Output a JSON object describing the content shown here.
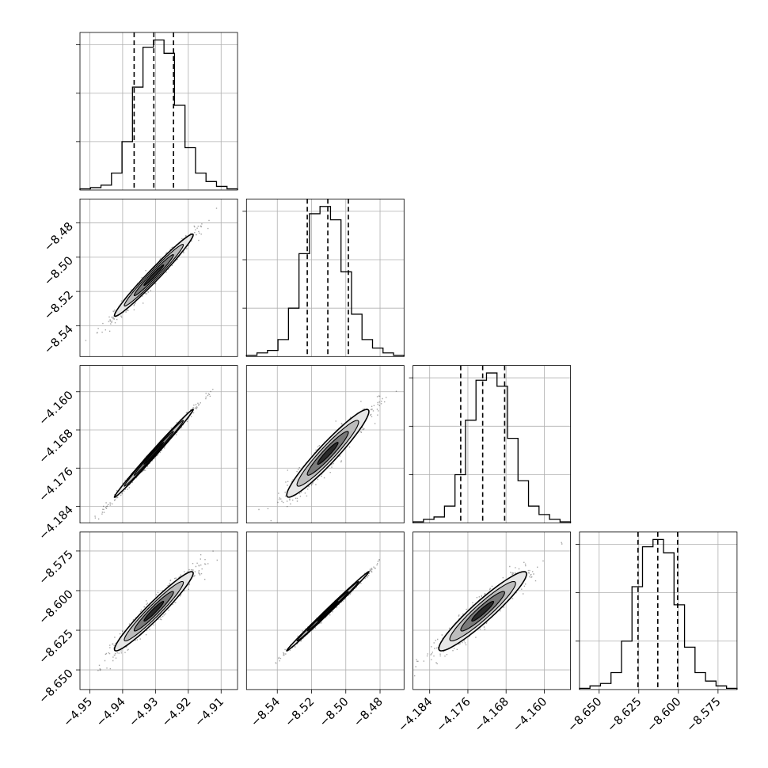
{
  "chart_data": {
    "type": "corner",
    "title": "",
    "grid": true,
    "legend": "none",
    "colors": {
      "axes": "#000000",
      "grid": "#b0b0b0",
      "hist": "#000000",
      "quantile_lines": "#000000",
      "scatter": "#000000"
    },
    "parameters": [
      {
        "label": "",
        "range": [
          -4.953,
          -4.905
        ],
        "ticks": [
          "-4.95",
          "-4.94",
          "-4.93",
          "-4.92",
          "-4.91"
        ],
        "quantiles": [
          -4.9365,
          -4.9305,
          -4.9245
        ]
      },
      {
        "label": "",
        "range": [
          -8.558,
          -8.466
        ],
        "ticks": [
          "-8.54",
          "-8.52",
          "-8.50",
          "-8.48"
        ],
        "quantiles": [
          -8.5225,
          -8.5105,
          -8.4985
        ]
      },
      {
        "label": "",
        "range": [
          -4.1875,
          -4.1545
        ],
        "ticks": [
          "-4.184",
          "-4.176",
          "-4.168",
          "-4.160"
        ],
        "quantiles": [
          -4.1775,
          -4.1729,
          -4.1683
        ]
      },
      {
        "label": "",
        "range": [
          -8.6624,
          -8.563
        ],
        "ticks": [
          "-8.650",
          "-8.625",
          "-8.600",
          "-8.575"
        ],
        "quantiles": [
          -8.6255,
          -8.613,
          -8.6005
        ]
      }
    ],
    "histograms": [
      {
        "parameter": 0,
        "bin_edges_range": [
          -4.953,
          -4.905
        ],
        "counts": [
          1,
          2,
          4,
          14,
          40,
          85,
          118,
          124,
          113,
          70,
          35,
          14,
          7,
          3,
          1
        ]
      },
      {
        "parameter": 1,
        "bin_edges_range": [
          -8.558,
          -8.466
        ],
        "counts": [
          1,
          3,
          5,
          14,
          40,
          85,
          118,
          124,
          113,
          70,
          35,
          14,
          7,
          3,
          1
        ]
      },
      {
        "parameter": 2,
        "bin_edges_range": [
          -4.1875,
          -4.1545
        ],
        "counts": [
          1,
          3,
          5,
          14,
          40,
          85,
          118,
          124,
          113,
          70,
          35,
          14,
          7,
          3,
          1
        ]
      },
      {
        "parameter": 3,
        "bin_edges_range": [
          -8.6624,
          -8.563
        ],
        "counts": [
          1,
          3,
          5,
          14,
          40,
          85,
          118,
          124,
          113,
          70,
          35,
          14,
          7,
          3,
          1
        ]
      }
    ],
    "correlations": [
      {
        "x": 0,
        "y": 1,
        "rho": 0.98
      },
      {
        "x": 0,
        "y": 2,
        "rho": 0.995
      },
      {
        "x": 1,
        "y": 2,
        "rho": 0.95
      },
      {
        "x": 0,
        "y": 3,
        "rho": 0.96
      },
      {
        "x": 1,
        "y": 3,
        "rho": 0.997
      },
      {
        "x": 2,
        "y": 3,
        "rho": 0.94
      }
    ],
    "contour_levels": [
      0.5,
      1.0,
      1.5,
      2.0
    ]
  }
}
